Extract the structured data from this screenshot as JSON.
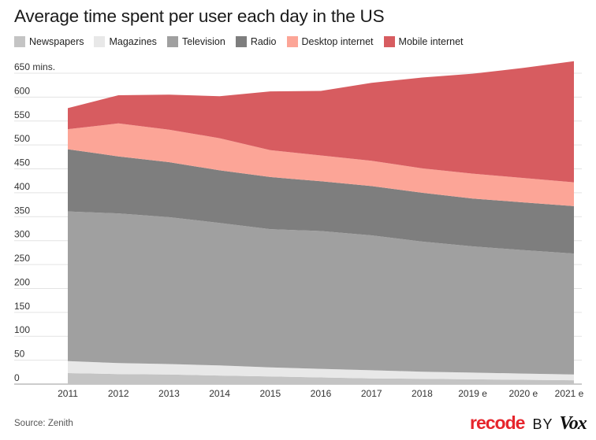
{
  "title": "Average time spent per user each day in the US",
  "source": "Source: Zenith",
  "brand": {
    "recode": "recode",
    "by": "BY",
    "vox": "Vox"
  },
  "chart_data": {
    "type": "area",
    "stacked": true,
    "title": "Average time spent per user each day in the US",
    "xlabel": "",
    "ylabel": "",
    "unit": "mins.",
    "ylim": [
      0,
      650
    ],
    "yticks": [
      0,
      50,
      100,
      150,
      200,
      250,
      300,
      350,
      400,
      450,
      500,
      550,
      600,
      650
    ],
    "ytick_labels": [
      "0",
      "50",
      "100",
      "150",
      "200",
      "250",
      "300",
      "350",
      "400",
      "450",
      "500",
      "550",
      "600",
      "650 mins."
    ],
    "grid": true,
    "legend_position": "top",
    "categories": [
      "2011",
      "2012",
      "2013",
      "2014",
      "2015",
      "2016",
      "2017",
      "2018",
      "2019 e",
      "2020 e",
      "2021 e"
    ],
    "series": [
      {
        "name": "Newspapers",
        "color": "#c4c4c4",
        "values": [
          23,
          21,
          20,
          18,
          16,
          14,
          12,
          11,
          10,
          9,
          8
        ]
      },
      {
        "name": "Magazines",
        "color": "#e8e8e8",
        "values": [
          25,
          23,
          22,
          21,
          19,
          18,
          17,
          15,
          14,
          13,
          12
        ]
      },
      {
        "name": "Television",
        "color": "#a0a0a0",
        "values": [
          313,
          313,
          307,
          298,
          289,
          288,
          282,
          272,
          264,
          258,
          253
        ]
      },
      {
        "name": "Radio",
        "color": "#7e7e7e",
        "values": [
          130,
          119,
          115,
          110,
          109,
          104,
          103,
          102,
          100,
          100,
          99
        ]
      },
      {
        "name": "Desktop internet",
        "color": "#fca597",
        "values": [
          42,
          69,
          68,
          67,
          56,
          54,
          53,
          51,
          52,
          51,
          50
        ]
      },
      {
        "name": "Mobile internet",
        "color": "#d75c60",
        "values": [
          44,
          59,
          73,
          88,
          123,
          135,
          163,
          190,
          209,
          230,
          253
        ]
      }
    ]
  }
}
